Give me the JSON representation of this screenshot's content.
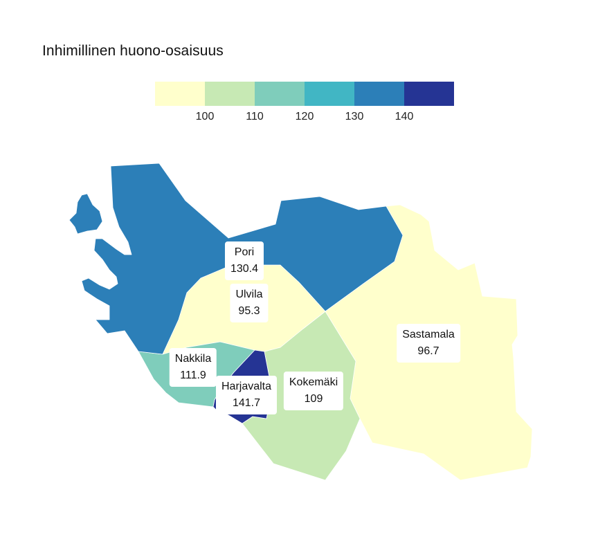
{
  "title": "Inhimillinen huono-osaisuus",
  "legend": {
    "colors": [
      "#ffffcc",
      "#c7e9b4",
      "#7fcdbb",
      "#41b6c4",
      "#2c7fb8",
      "#253494"
    ],
    "ticks": [
      "100",
      "110",
      "120",
      "130",
      "140"
    ]
  },
  "regions": [
    {
      "id": "pori",
      "name": "Pori",
      "value": "130.4",
      "color": "#2c7fb8"
    },
    {
      "id": "ulvila",
      "name": "Ulvila",
      "value": "95.3",
      "color": "#ffffcc"
    },
    {
      "id": "sastamala",
      "name": "Sastamala",
      "value": "96.7",
      "color": "#ffffcc"
    },
    {
      "id": "nakkila",
      "name": "Nakkila",
      "value": "111.9",
      "color": "#7fcdbb"
    },
    {
      "id": "harjavalta",
      "name": "Harjavalta",
      "value": "141.7",
      "color": "#253494"
    },
    {
      "id": "kokemaki",
      "name": "Kokemäki",
      "value": "109",
      "color": "#c7e9b4"
    }
  ]
}
